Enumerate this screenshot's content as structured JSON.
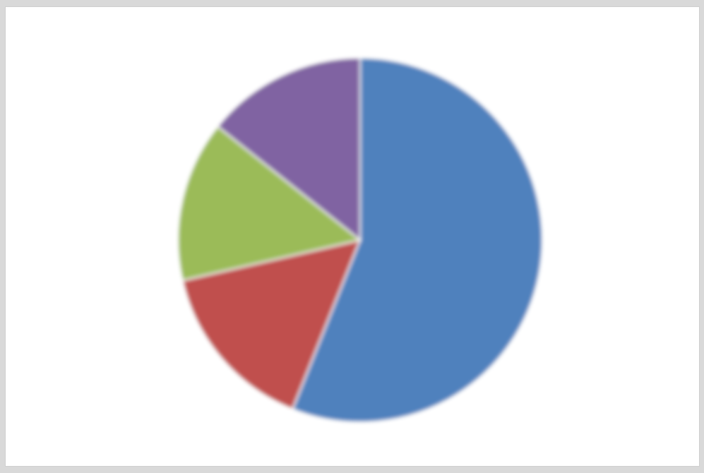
{
  "chart_data": {
    "type": "pie",
    "title": "",
    "categories": [
      "",
      "",
      "",
      ""
    ],
    "values": [
      51,
      14,
      13,
      13
    ],
    "colors": [
      "#4f81bd",
      "#c0504d",
      "#9bbb59",
      "#8064a2"
    ],
    "slice_labels": [
      "",
      "",
      "",
      ""
    ],
    "legend": "none"
  }
}
